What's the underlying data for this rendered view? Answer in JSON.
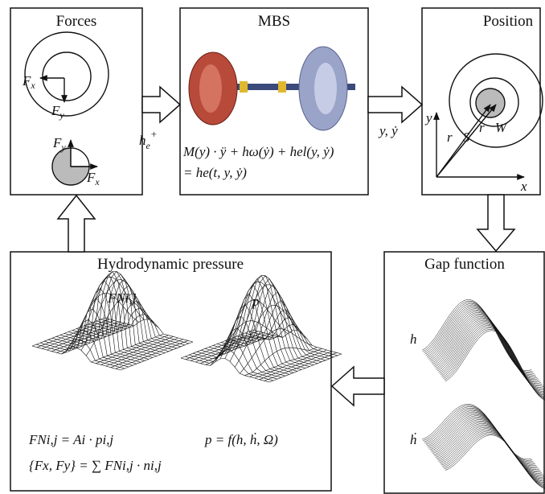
{
  "nodes": [
    {
      "label": "Forces",
      "symbols": [
        {
          "base": "F",
          "sub": "x"
        },
        {
          "base": "F",
          "sub": "y"
        },
        {
          "base": "F",
          "sub": "y"
        },
        {
          "base": "F",
          "sub": "x"
        }
      ]
    },
    {
      "label": "MBS",
      "equation": [
        "M(y) · ÿ + hω(ẏ) + hel(y, ẏ)",
        "=   he(t, y, ẏ)"
      ]
    },
    {
      "label": "Position",
      "symbols": [
        "y",
        "x",
        "r⃗S",
        "r⃗W"
      ]
    },
    {
      "label": "Gap function",
      "symbols": [
        "h",
        "ḣ"
      ]
    },
    {
      "label": "Hydrodynamic pressure",
      "symbols": [
        "FNi,j",
        "p"
      ],
      "equations": [
        "FNi,j = Ai · pi,j",
        "p = f(h, ḣ, Ω)",
        "{Fx, Fy} = ∑ FNi,j · ni,j"
      ]
    }
  ],
  "edges": [
    {
      "base": "h",
      "sub": "e",
      "sup": "+"
    },
    {
      "label": "y, ẏ"
    }
  ]
}
